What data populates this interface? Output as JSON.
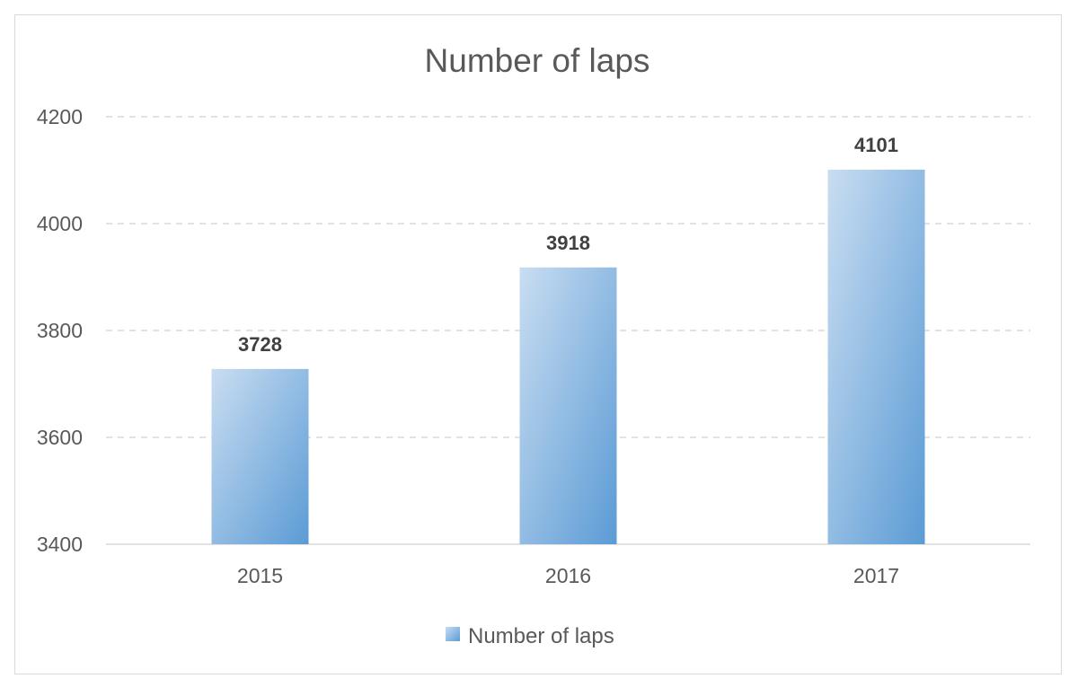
{
  "chart_data": {
    "type": "bar",
    "title": "Number of laps",
    "categories": [
      "2015",
      "2016",
      "2017"
    ],
    "series": [
      {
        "name": "Number of laps",
        "values": [
          3728,
          3918,
          4101
        ]
      }
    ],
    "ylim": [
      3400,
      4200
    ],
    "yticks": [
      3400,
      3600,
      3800,
      4000,
      4200
    ],
    "data_labels": true,
    "grid": "horizontal-dashed",
    "legend_position": "bottom",
    "colors": {
      "bar_top": "#c9ddf1",
      "bar_bottom": "#5b9bd5",
      "grid": "#d9d9d9",
      "axis": "#d9d9d9"
    }
  }
}
